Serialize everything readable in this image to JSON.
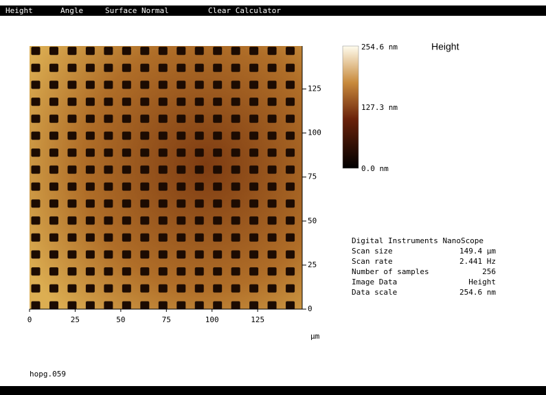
{
  "menu": [
    "Height",
    "Angle",
    "Surface Normal",
    "Clear Calculator"
  ],
  "image": {
    "title": "Height",
    "xlim": [
      0,
      149.4
    ],
    "ylim": [
      0,
      149.4
    ],
    "xticks": [
      0,
      25,
      50,
      75,
      100,
      125
    ],
    "yticks": [
      0,
      25,
      50,
      75,
      100,
      125
    ],
    "unit": "µm"
  },
  "color_bar": {
    "top": "254.6 nm",
    "middle": "127.3 nm",
    "bottom": "0.0 nm"
  },
  "info": {
    "header": "Digital Instruments NanoScope",
    "rows": [
      [
        "Scan size",
        "149.4 µm"
      ],
      [
        "Scan rate",
        "2.441 Hz"
      ],
      [
        "Number of samples",
        "256"
      ],
      [
        "Image Data",
        "Height"
      ],
      [
        "Data scale",
        "254.6 nm"
      ]
    ]
  },
  "filename": "hopg.059"
}
